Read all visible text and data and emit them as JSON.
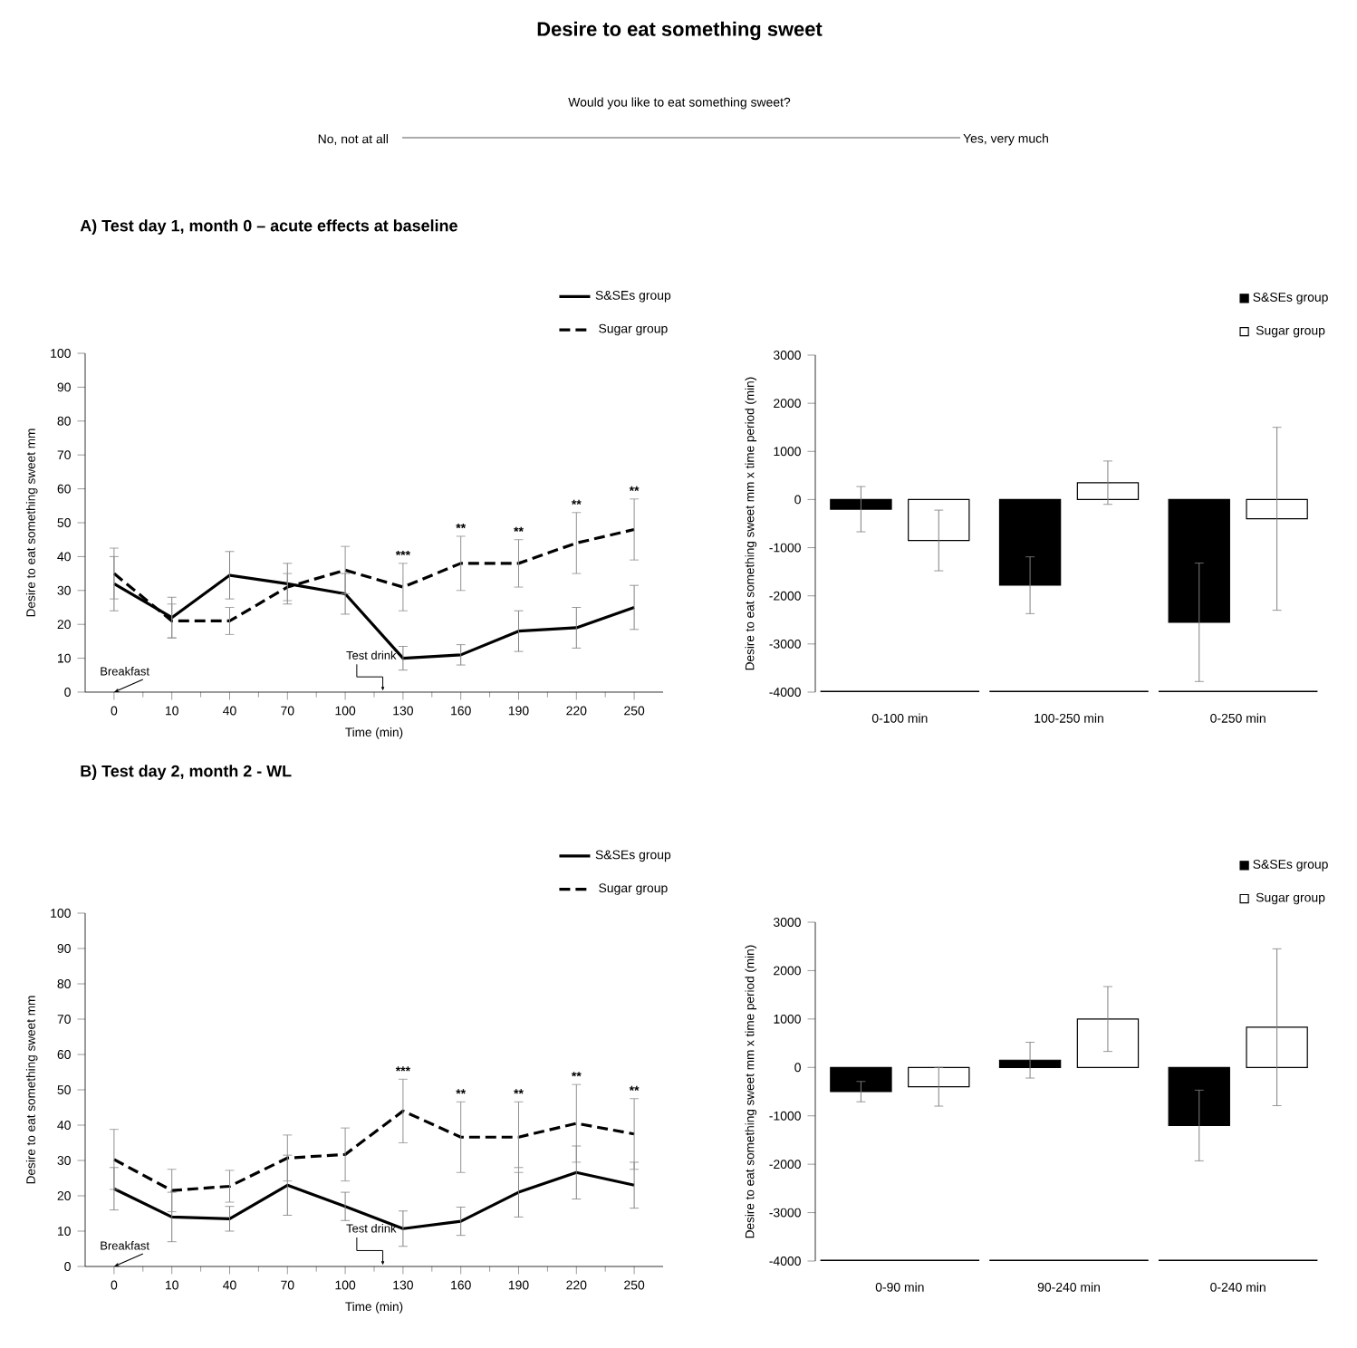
{
  "chart_data": [
    {
      "type": "other",
      "title": "Desire to eat something sweet",
      "annotations": [
        "Would you like to eat something sweet?",
        "No, not at all",
        "Yes, very much"
      ]
    },
    {
      "type": "line",
      "title": "A) Test day 1, month 0 – acute effects at baseline",
      "xlabel": "Time (min)",
      "ylabel": "Desire to eat something sweet mm",
      "categories": [
        "0",
        "10",
        "40",
        "70",
        "100",
        "130",
        "160",
        "190",
        "220",
        "250"
      ],
      "ylim": [
        0,
        100
      ],
      "yticks": [
        0,
        10,
        20,
        30,
        40,
        50,
        60,
        70,
        80,
        90,
        100
      ],
      "legend": "top right",
      "marker": "none",
      "series": [
        {
          "name": "S&SEs group",
          "color": "#000000",
          "line_style": "solid",
          "values": [
            32,
            22,
            34.5,
            32,
            29,
            10,
            11,
            18,
            19,
            25
          ],
          "errors": [
            8,
            6,
            7,
            6,
            6,
            3.5,
            3,
            6,
            6,
            6.5
          ]
        },
        {
          "name": "Sugar group",
          "color": "#000000",
          "line_style": "dashed",
          "values": [
            35,
            21,
            21,
            31,
            36,
            31,
            38,
            38,
            44,
            48
          ],
          "errors": [
            7.5,
            5,
            4,
            4,
            7,
            7,
            8,
            7,
            9,
            9
          ]
        }
      ],
      "annotations": [
        {
          "text": "Breakfast",
          "x": "0",
          "y": 0
        },
        "Test drink",
        {
          "text": "***",
          "x": "130",
          "y": 38
        },
        {
          "text": "**",
          "x": "160",
          "y": 46
        },
        {
          "text": "**",
          "x": "190",
          "y": 45
        },
        {
          "text": "**",
          "x": "220",
          "y": 53
        },
        {
          "text": "**",
          "x": "250",
          "y": 57
        }
      ]
    },
    {
      "type": "bar",
      "ylabel": "Desire to eat something sweet mm x time period (min)",
      "categories": [
        "0-100 min",
        "100-250 min",
        "0-250 min"
      ],
      "ylim": [
        -4000,
        3000
      ],
      "yticks": [
        -4000,
        -3000,
        -2000,
        -1000,
        0,
        1000,
        2000,
        3000
      ],
      "legend": "top right",
      "series": [
        {
          "name": "S&SEs group",
          "color": "#000000",
          "values": [
            -200,
            -1780,
            -2550
          ],
          "errors": [
            470,
            590,
            1230
          ]
        },
        {
          "name": "Sugar group",
          "color": "#ffffff",
          "values": [
            -850,
            350,
            -400
          ],
          "errors": [
            630,
            450,
            1900
          ]
        }
      ]
    },
    {
      "type": "line",
      "title": "B) Test day 2, month 2 - WL",
      "xlabel": "Time (min)",
      "ylabel": "Desire to eat something sweet mm",
      "categories": [
        "0",
        "10",
        "40",
        "70",
        "100",
        "130",
        "160",
        "190",
        "220",
        "250"
      ],
      "ylim": [
        0,
        100
      ],
      "yticks": [
        0,
        10,
        20,
        30,
        40,
        50,
        60,
        70,
        80,
        90,
        100
      ],
      "legend": "top right",
      "marker": "none",
      "series": [
        {
          "name": "S&SEs group",
          "color": "#000000",
          "line_style": "solid",
          "values": [
            22,
            14,
            13.5,
            23,
            17,
            10.7,
            12.8,
            21,
            26.6,
            23
          ],
          "errors": [
            6,
            7,
            3.5,
            8.5,
            4,
            5,
            4,
            7,
            7.5,
            6.5
          ]
        },
        {
          "name": "Sugar group",
          "color": "#000000",
          "line_style": "dashed",
          "values": [
            30.3,
            21.5,
            22.7,
            30.7,
            31.7,
            44,
            36.6,
            36.6,
            40.5,
            37.5
          ],
          "errors": [
            8.5,
            6,
            4.5,
            6.5,
            7.5,
            9,
            10,
            10,
            11,
            10
          ]
        }
      ],
      "annotations": [
        {
          "text": "Breakfast",
          "x": "0",
          "y": 0
        },
        "Test drink",
        {
          "text": "***",
          "x": "130",
          "y": 53
        },
        {
          "text": "**",
          "x": "160",
          "y": 46.6
        },
        {
          "text": "**",
          "x": "190",
          "y": 46.6
        },
        {
          "text": "**",
          "x": "220",
          "y": 51.5
        },
        {
          "text": "**",
          "x": "250",
          "y": 47.5
        }
      ]
    },
    {
      "type": "bar",
      "ylabel": "Desire to eat something sweet mm x time period (min)",
      "categories": [
        "0-90 min",
        "90-240 min",
        "0-240 min"
      ],
      "ylim": [
        -4000,
        3000
      ],
      "yticks": [
        -4000,
        -3000,
        -2000,
        -1000,
        0,
        1000,
        2000,
        3000
      ],
      "legend": "top right",
      "series": [
        {
          "name": "S&SEs group",
          "color": "#000000",
          "values": [
            -500,
            150,
            -1200
          ],
          "errors": [
            210,
            370,
            730
          ]
        },
        {
          "name": "Sugar group",
          "color": "#ffffff",
          "values": [
            -400,
            1000,
            830
          ],
          "errors": [
            400,
            670,
            1620
          ]
        }
      ]
    }
  ]
}
